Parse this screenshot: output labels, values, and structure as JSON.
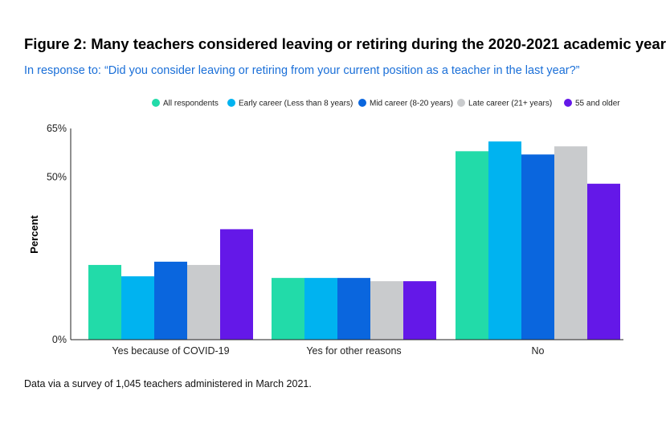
{
  "chart_data": {
    "type": "bar",
    "title": "Figure 2: Many teachers considered leaving or retiring during the 2020-2021 academic year",
    "subtitle": "In response to: “Did you consider leaving or retiring from your current position as a teacher in the last year?”",
    "ylabel": "Percent",
    "xlabel": "",
    "ylim": [
      0,
      65
    ],
    "yticks": [
      {
        "value": 0,
        "label": "0%"
      },
      {
        "value": 50,
        "label": "50%"
      },
      {
        "value": 65,
        "label": "65%"
      }
    ],
    "categories": [
      "Yes because of COVID-19",
      "Yes for other reasons",
      "No"
    ],
    "series": [
      {
        "name": "All respondents",
        "color": "#22dba9",
        "values": [
          23,
          19,
          58
        ]
      },
      {
        "name": "Early career (Less than 8 years)",
        "color": "#00b3f0",
        "values": [
          19.5,
          19,
          61
        ]
      },
      {
        "name": "Mid career (8-20 years)",
        "color": "#0a66de",
        "values": [
          24,
          19,
          57
        ]
      },
      {
        "name": "Late career (21+ years)",
        "color": "#c9cbcd",
        "values": [
          23,
          18,
          59.5
        ]
      },
      {
        "name": "55 and older",
        "color": "#6418e8",
        "values": [
          34,
          18,
          48
        ]
      }
    ],
    "legend_position": "top-right",
    "grid": false
  },
  "source_note": "Data via a survey of 1,045 teachers administered in March 2021."
}
